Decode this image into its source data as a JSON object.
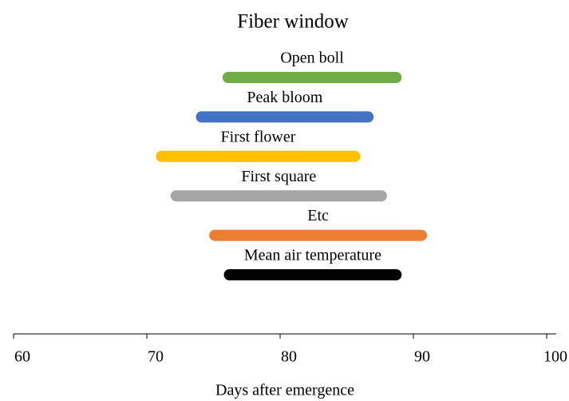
{
  "chart_data": {
    "type": "range_bar",
    "title": "Fiber window",
    "xlabel": "Days after emergence",
    "categories": [
      "Open boll",
      "Peak bloom",
      "First flower",
      "First square",
      "Etc",
      "Mean air temperature"
    ],
    "starts": [
      76.1,
      74.1,
      71.1,
      72.2,
      75.1,
      76.2
    ],
    "ends": [
      88.7,
      86.6,
      85.6,
      87.6,
      90.6,
      88.7
    ],
    "colors": [
      "#70ad47",
      "#4472c4",
      "#ffc000",
      "#a5a5a5",
      "#ed7d31",
      "#000000"
    ],
    "xlim": [
      60,
      100
    ],
    "xticks": [
      60,
      70,
      80,
      90,
      100
    ]
  }
}
